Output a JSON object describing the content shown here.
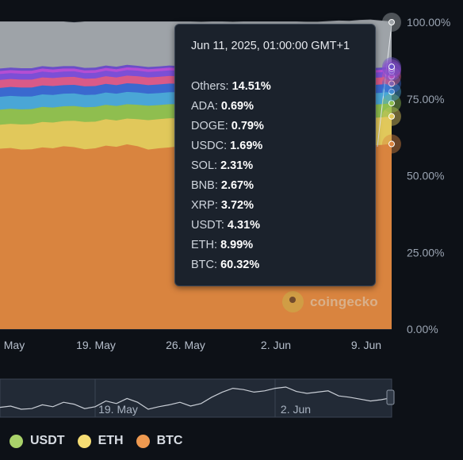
{
  "chart_data": {
    "type": "area",
    "stacking": "percent",
    "x_ticks": [
      "May",
      "19. May",
      "26. May",
      "2. Jun",
      "9. Jun"
    ],
    "y_ticks": [
      "100.00%",
      "75.00%",
      "50.00%",
      "25.00%",
      "0.00%"
    ],
    "ylim": [
      0,
      100
    ],
    "series": [
      {
        "name": "BTC",
        "color": "#d9843f",
        "values": [
          58.8,
          59.0,
          58.5,
          58.6,
          59.2,
          58.9,
          59.6,
          59.3,
          58.6,
          58.9,
          59.8,
          59.4,
          60.2,
          59.6,
          58.5,
          58.9,
          59.2,
          59.6,
          59.0,
          59.4,
          60.4,
          61.2,
          61.8,
          61.6,
          61.2,
          61.4,
          61.8,
          62.0,
          61.3,
          61.0,
          61.2,
          61.4,
          60.6,
          60.4,
          60.1,
          59.8,
          60.0,
          60.32
        ]
      },
      {
        "name": "ETH",
        "color": "#e1c85b",
        "values": [
          7.8,
          7.9,
          8.2,
          8.2,
          8.3,
          8.4,
          8.2,
          8.6,
          8.9,
          8.7,
          8.6,
          8.6,
          8.4,
          8.8,
          9.6,
          9.5,
          9.5,
          9.1,
          9.4,
          9.4,
          9.5,
          9.5,
          9.4,
          9.4,
          9.3,
          9.3,
          9.2,
          9.1,
          9.2,
          9.1,
          9.0,
          9.0,
          9.0,
          9.0,
          9.0,
          9.0,
          9.0,
          8.99
        ]
      },
      {
        "name": "USDT",
        "color": "#8fbe4f",
        "values": [
          4.9,
          4.9,
          4.9,
          4.9,
          4.9,
          4.9,
          4.8,
          4.8,
          4.8,
          4.8,
          4.7,
          4.7,
          4.7,
          4.7,
          4.7,
          4.6,
          4.6,
          4.6,
          4.6,
          4.6,
          4.5,
          4.5,
          4.5,
          4.5,
          4.4,
          4.4,
          4.4,
          4.4,
          4.4,
          4.4,
          4.4,
          4.3,
          4.3,
          4.3,
          4.3,
          4.3,
          4.3,
          4.31
        ]
      },
      {
        "name": "XRP",
        "color": "#4aa6d6",
        "values": [
          4.2,
          4.2,
          4.2,
          4.1,
          4.1,
          4.1,
          4.1,
          4.1,
          4.0,
          4.0,
          4.0,
          4.0,
          4.0,
          4.0,
          3.9,
          3.9,
          3.9,
          3.9,
          3.9,
          3.9,
          3.9,
          3.9,
          3.9,
          3.8,
          3.8,
          3.8,
          3.8,
          3.8,
          3.8,
          3.8,
          3.8,
          3.8,
          3.8,
          3.7,
          3.7,
          3.7,
          3.7,
          3.72
        ]
      },
      {
        "name": "BNB",
        "color": "#3a69cf",
        "values": [
          2.9,
          2.9,
          2.9,
          2.9,
          2.9,
          2.9,
          2.8,
          2.8,
          2.8,
          2.8,
          2.8,
          2.8,
          2.8,
          2.8,
          2.8,
          2.8,
          2.8,
          2.7,
          2.7,
          2.7,
          2.7,
          2.7,
          2.7,
          2.7,
          2.7,
          2.7,
          2.7,
          2.7,
          2.7,
          2.7,
          2.7,
          2.7,
          2.7,
          2.7,
          2.7,
          2.7,
          2.7,
          2.67
        ]
      },
      {
        "name": "SOL",
        "color": "#d95a88",
        "values": [
          2.6,
          2.6,
          2.6,
          2.6,
          2.6,
          2.6,
          2.6,
          2.6,
          2.5,
          2.5,
          2.5,
          2.5,
          2.5,
          2.5,
          2.5,
          2.5,
          2.5,
          2.5,
          2.4,
          2.4,
          2.4,
          2.4,
          2.4,
          2.4,
          2.4,
          2.4,
          2.4,
          2.4,
          2.4,
          2.4,
          2.4,
          2.3,
          2.3,
          2.3,
          2.3,
          2.3,
          2.3,
          2.31
        ]
      },
      {
        "name": "USDC",
        "color": "#7c4fd6",
        "values": [
          1.9,
          1.9,
          1.9,
          1.9,
          1.9,
          1.8,
          1.8,
          1.8,
          1.8,
          1.8,
          1.8,
          1.8,
          1.8,
          1.8,
          1.8,
          1.8,
          1.8,
          1.7,
          1.7,
          1.7,
          1.7,
          1.7,
          1.7,
          1.7,
          1.7,
          1.7,
          1.7,
          1.7,
          1.7,
          1.7,
          1.7,
          1.7,
          1.7,
          1.7,
          1.7,
          1.7,
          1.7,
          1.69
        ]
      },
      {
        "name": "DOGE",
        "color": "#b44ed3",
        "values": [
          1.0,
          1.0,
          1.0,
          1.0,
          1.0,
          1.0,
          1.0,
          0.9,
          0.9,
          0.9,
          0.9,
          0.9,
          0.9,
          0.9,
          0.9,
          0.9,
          0.9,
          0.9,
          0.9,
          0.9,
          0.9,
          0.9,
          0.9,
          0.9,
          0.8,
          0.8,
          0.8,
          0.8,
          0.8,
          0.8,
          0.8,
          0.8,
          0.8,
          0.8,
          0.8,
          0.8,
          0.8,
          0.79
        ]
      },
      {
        "name": "ADA",
        "color": "#6a4fc8",
        "values": [
          0.8,
          0.8,
          0.8,
          0.8,
          0.8,
          0.8,
          0.8,
          0.8,
          0.8,
          0.8,
          0.8,
          0.8,
          0.8,
          0.7,
          0.7,
          0.7,
          0.7,
          0.7,
          0.7,
          0.7,
          0.7,
          0.7,
          0.7,
          0.7,
          0.7,
          0.7,
          0.7,
          0.7,
          0.7,
          0.7,
          0.7,
          0.7,
          0.7,
          0.7,
          0.7,
          0.7,
          0.7,
          0.69
        ]
      },
      {
        "name": "Others",
        "color": "#9ea3a8",
        "values": [
          15.1,
          14.8,
          15.0,
          15.0,
          14.3,
          14.6,
          14.3,
          14.0,
          14.9,
          14.8,
          14.1,
          14.5,
          13.9,
          14.2,
          14.6,
          14.4,
          14.1,
          14.3,
          14.7,
          14.2,
          13.3,
          12.5,
          11.9,
          12.3,
          13.0,
          12.8,
          12.5,
          12.4,
          13.0,
          13.3,
          13.2,
          13.4,
          14.4,
          14.6,
          15.2,
          15.6,
          15.1,
          14.51
        ]
      }
    ],
    "tooltip": {
      "time": "Jun 11, 2025, 01:00:00 GMT+1",
      "rows": [
        {
          "name": "Others",
          "value": "14.51%"
        },
        {
          "name": "ADA",
          "value": "0.69%"
        },
        {
          "name": "DOGE",
          "value": "0.79%"
        },
        {
          "name": "USDC",
          "value": "1.69%"
        },
        {
          "name": "SOL",
          "value": "2.31%"
        },
        {
          "name": "BNB",
          "value": "2.67%"
        },
        {
          "name": "XRP",
          "value": "3.72%"
        },
        {
          "name": "USDT",
          "value": "4.31%"
        },
        {
          "name": "ETH",
          "value": "8.99%"
        },
        {
          "name": "BTC",
          "value": "60.32%"
        }
      ]
    },
    "navigator": {
      "labels": [
        "19. May",
        "2. Jun"
      ],
      "values": [
        58.8,
        59.0,
        58.5,
        58.6,
        59.2,
        58.9,
        59.6,
        59.3,
        58.6,
        58.9,
        59.8,
        59.4,
        60.2,
        59.6,
        58.5,
        58.9,
        59.2,
        59.6,
        59.0,
        59.4,
        60.4,
        61.2,
        61.8,
        61.6,
        61.2,
        61.4,
        61.8,
        62.0,
        61.3,
        61.0,
        61.2,
        61.4,
        60.6,
        60.4,
        60.1,
        59.8,
        60.0,
        60.32
      ]
    },
    "legend": [
      {
        "name": "USDT",
        "color": "#a9d26a"
      },
      {
        "name": "ETH",
        "color": "#f5dd74"
      },
      {
        "name": "BTC",
        "color": "#ee9950"
      }
    ]
  },
  "watermark": "coingecko"
}
